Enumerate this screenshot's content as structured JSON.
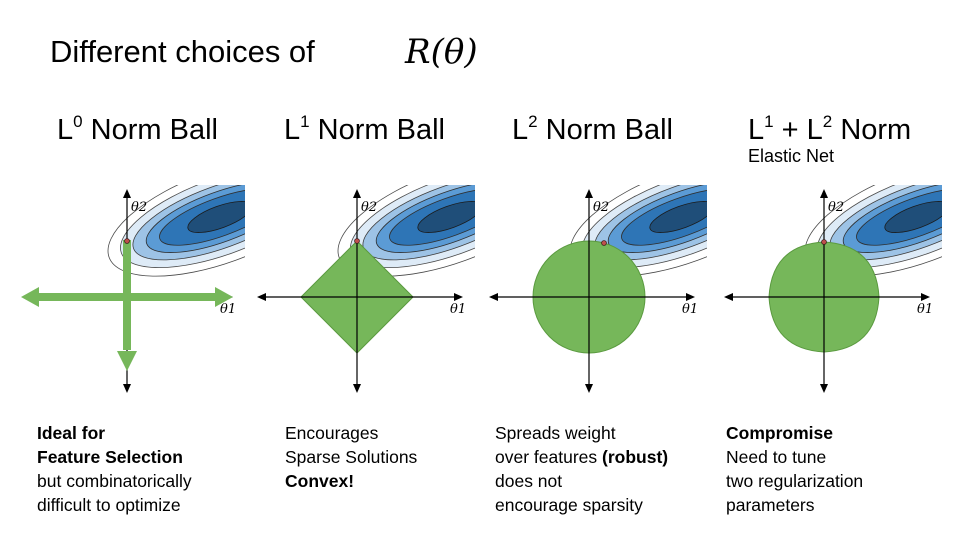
{
  "title": {
    "text": "Different choices of",
    "math": "R(θ)"
  },
  "panels": [
    {
      "id": "l0",
      "heading": {
        "base": "L",
        "sup": "0",
        "rest": " Norm Ball"
      },
      "ball": "cross",
      "axis_x": "θ1",
      "axis_y": "θ2",
      "caption": [
        {
          "text": "Ideal for",
          "bold": true
        },
        {
          "text": "Feature Selection",
          "bold": true
        },
        {
          "text": "but combinatorically",
          "bold": false
        },
        {
          "text": "difficult to optimize",
          "bold": false
        }
      ]
    },
    {
      "id": "l1",
      "heading": {
        "base": "L",
        "sup": "1",
        "rest": " Norm Ball"
      },
      "ball": "diamond",
      "axis_x": "θ1",
      "axis_y": "θ2",
      "caption": [
        {
          "text": "Encourages",
          "bold": false
        },
        {
          "text": "Sparse Solutions",
          "bold": false
        },
        {
          "text": "Convex!",
          "bold": true
        }
      ]
    },
    {
      "id": "l2",
      "heading": {
        "base": "L",
        "sup": "2",
        "rest": " Norm Ball"
      },
      "ball": "circle",
      "axis_x": "θ1",
      "axis_y": "θ2",
      "caption": [
        {
          "parts": [
            {
              "text": "Spreads weight",
              "bold": false
            }
          ]
        },
        {
          "parts": [
            {
              "text": "over features ",
              "bold": false
            },
            {
              "text": "(robust)",
              "bold": true
            }
          ]
        },
        {
          "parts": [
            {
              "text": "does not",
              "bold": false
            }
          ]
        },
        {
          "parts": [
            {
              "text": "encourage sparsity",
              "bold": false
            }
          ]
        }
      ]
    },
    {
      "id": "elastic",
      "heading": {
        "base": "L",
        "sup": "1",
        "rest": " + L",
        "sup2": "2",
        "rest2": " Norm"
      },
      "subheading": "Elastic Net",
      "ball": "elastic",
      "axis_x": "θ1",
      "axis_y": "θ2",
      "caption": [
        {
          "text": "Compromise",
          "bold": true
        },
        {
          "text": "Need to tune",
          "bold": false
        },
        {
          "text": "two regularization",
          "bold": false
        },
        {
          "text": "parameters",
          "bold": false
        }
      ]
    }
  ],
  "colors": {
    "ball_fill": "#76b75a",
    "ball_stroke": "#5a9a3f",
    "contour_dark": "#1f4e79",
    "contour_mid": "#2e75b6",
    "contour_light": "#9dc3e6",
    "contour_lightest": "#deebf7",
    "point": "#c0504d"
  }
}
